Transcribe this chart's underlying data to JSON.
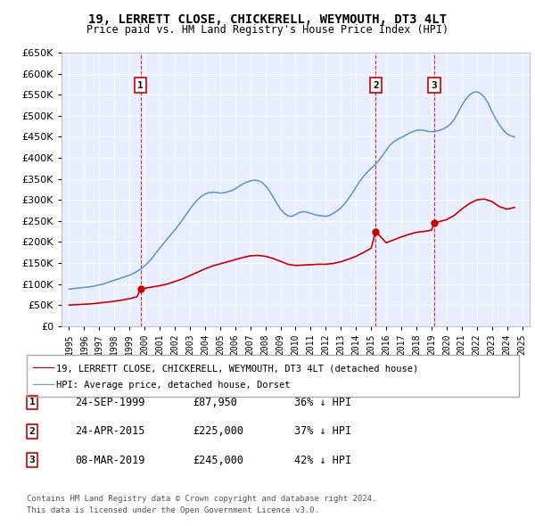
{
  "title": "19, LERRETT CLOSE, CHICKERELL, WEYMOUTH, DT3 4LT",
  "subtitle": "Price paid vs. HM Land Registry's House Price Index (HPI)",
  "ylabel": "",
  "xlabel": "",
  "ylim": [
    0,
    650000
  ],
  "yticks": [
    0,
    50000,
    100000,
    150000,
    200000,
    250000,
    300000,
    350000,
    400000,
    450000,
    500000,
    550000,
    600000,
    650000
  ],
  "ytick_labels": [
    "£0",
    "£50K",
    "£100K",
    "£150K",
    "£200K",
    "£250K",
    "£300K",
    "£350K",
    "£400K",
    "£450K",
    "£500K",
    "£550K",
    "£600K",
    "£650K"
  ],
  "background_color": "#e8eeff",
  "plot_bg_color": "#e8eeff",
  "grid_color": "#ffffff",
  "red_line_color": "#cc0000",
  "blue_line_color": "#6699cc",
  "marker_color": "#cc0000",
  "vline_color": "#cc0000",
  "sale_dates": [
    1999.73,
    2015.31,
    2019.18
  ],
  "sale_prices": [
    87950,
    225000,
    245000
  ],
  "sale_labels": [
    "1",
    "2",
    "3"
  ],
  "transactions": [
    {
      "label": "1",
      "date": "24-SEP-1999",
      "price": "£87,950",
      "hpi": "36% ↓ HPI"
    },
    {
      "label": "2",
      "date": "24-APR-2015",
      "price": "£225,000",
      "hpi": "37% ↓ HPI"
    },
    {
      "label": "3",
      "date": "08-MAR-2019",
      "price": "£245,000",
      "hpi": "42% ↓ HPI"
    }
  ],
  "legend_entries": [
    "19, LERRETT CLOSE, CHICKERELL, WEYMOUTH, DT3 4LT (detached house)",
    "HPI: Average price, detached house, Dorset"
  ],
  "footer_line1": "Contains HM Land Registry data © Crown copyright and database right 2024.",
  "footer_line2": "This data is licensed under the Open Government Licence v3.0.",
  "hpi_years": [
    1995,
    1995.25,
    1995.5,
    1995.75,
    1996,
    1996.25,
    1996.5,
    1996.75,
    1997,
    1997.25,
    1997.5,
    1997.75,
    1998,
    1998.25,
    1998.5,
    1998.75,
    1999,
    1999.25,
    1999.5,
    1999.75,
    2000,
    2000.25,
    2000.5,
    2000.75,
    2001,
    2001.25,
    2001.5,
    2001.75,
    2002,
    2002.25,
    2002.5,
    2002.75,
    2003,
    2003.25,
    2003.5,
    2003.75,
    2004,
    2004.25,
    2004.5,
    2004.75,
    2005,
    2005.25,
    2005.5,
    2005.75,
    2006,
    2006.25,
    2006.5,
    2006.75,
    2007,
    2007.25,
    2007.5,
    2007.75,
    2008,
    2008.25,
    2008.5,
    2008.75,
    2009,
    2009.25,
    2009.5,
    2009.75,
    2010,
    2010.25,
    2010.5,
    2010.75,
    2011,
    2011.25,
    2011.5,
    2011.75,
    2012,
    2012.25,
    2012.5,
    2012.75,
    2013,
    2013.25,
    2013.5,
    2013.75,
    2014,
    2014.25,
    2014.5,
    2014.75,
    2015,
    2015.25,
    2015.5,
    2015.75,
    2016,
    2016.25,
    2016.5,
    2016.75,
    2017,
    2017.25,
    2017.5,
    2017.75,
    2018,
    2018.25,
    2018.5,
    2018.75,
    2019,
    2019.25,
    2019.5,
    2019.75,
    2020,
    2020.25,
    2020.5,
    2020.75,
    2021,
    2021.25,
    2021.5,
    2021.75,
    2022,
    2022.25,
    2022.5,
    2022.75,
    2023,
    2023.25,
    2023.5,
    2023.75,
    2024,
    2024.25,
    2024.5
  ],
  "hpi_values": [
    88000,
    89000,
    90000,
    91000,
    92000,
    93000,
    94000,
    96000,
    98000,
    100000,
    103000,
    106000,
    109000,
    112000,
    115000,
    118000,
    121000,
    125000,
    130000,
    136000,
    143000,
    152000,
    162000,
    174000,
    185000,
    196000,
    207000,
    218000,
    228000,
    240000,
    252000,
    265000,
    278000,
    290000,
    300000,
    308000,
    314000,
    317000,
    318000,
    318000,
    316000,
    317000,
    319000,
    322000,
    326000,
    332000,
    338000,
    342000,
    345000,
    347000,
    346000,
    342000,
    334000,
    322000,
    308000,
    292000,
    278000,
    268000,
    262000,
    261000,
    265000,
    270000,
    272000,
    271000,
    268000,
    265000,
    263000,
    262000,
    261000,
    263000,
    268000,
    274000,
    281000,
    291000,
    303000,
    316000,
    330000,
    344000,
    356000,
    366000,
    375000,
    383000,
    393000,
    405000,
    418000,
    430000,
    438000,
    444000,
    448000,
    453000,
    458000,
    462000,
    465000,
    466000,
    465000,
    463000,
    462000,
    463000,
    465000,
    468000,
    473000,
    480000,
    491000,
    507000,
    524000,
    538000,
    549000,
    555000,
    557000,
    553000,
    544000,
    530000,
    510000,
    493000,
    478000,
    466000,
    457000,
    452000,
    450000
  ],
  "price_paid_years": [
    1999.73,
    2015.31,
    2019.18
  ],
  "price_paid_prices": [
    87950,
    225000,
    245000
  ],
  "red_line_years": [
    1995,
    1995.5,
    1996,
    1996.5,
    1997,
    1997.5,
    1998,
    1998.5,
    1999,
    1999.5,
    1999.73,
    2000,
    2000.5,
    2001,
    2001.5,
    2002,
    2002.5,
    2003,
    2003.5,
    2004,
    2004.5,
    2005,
    2005.5,
    2006,
    2006.5,
    2007,
    2007.5,
    2008,
    2008.5,
    2009,
    2009.5,
    2010,
    2010.5,
    2011,
    2011.5,
    2012,
    2012.5,
    2013,
    2013.5,
    2014,
    2014.5,
    2015,
    2015.31,
    2016,
    2016.5,
    2017,
    2017.5,
    2018,
    2018.5,
    2019,
    2019.18,
    2020,
    2020.5,
    2021,
    2021.5,
    2022,
    2022.5,
    2023,
    2023.5,
    2024,
    2024.5
  ],
  "red_line_values": [
    50000,
    51000,
    52000,
    53000,
    55000,
    57000,
    59000,
    62000,
    65000,
    70000,
    87950,
    90000,
    93000,
    96000,
    100000,
    106000,
    112000,
    120000,
    128000,
    136000,
    143000,
    148000,
    153000,
    158000,
    163000,
    167000,
    168000,
    166000,
    161000,
    154000,
    147000,
    144000,
    145000,
    146000,
    147000,
    147000,
    149000,
    153000,
    159000,
    166000,
    175000,
    185000,
    225000,
    198000,
    205000,
    212000,
    218000,
    223000,
    225000,
    228000,
    245000,
    253000,
    263000,
    278000,
    291000,
    300000,
    302000,
    296000,
    284000,
    278000,
    282000
  ]
}
